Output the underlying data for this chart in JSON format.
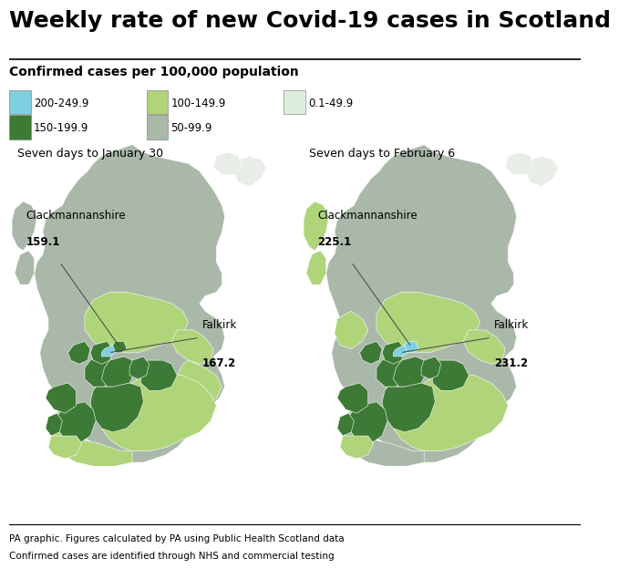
{
  "title": "Weekly rate of new Covid-19 cases in Scotland",
  "subtitle": "Confirmed cases per 100,000 population",
  "footer_line1": "PA graphic. Figures calculated by PA using Public Health Scotland data",
  "footer_line2": "Confirmed cases are identified through NHS and commercial testing",
  "legend": [
    {
      "label": "200-249.9",
      "color": "#7ecfe0"
    },
    {
      "label": "100-149.9",
      "color": "#afd47a"
    },
    {
      "label": "0.1-49.9",
      "color": "#ddeedd"
    },
    {
      "label": "150-199.9",
      "color": "#3d7a35"
    },
    {
      "label": "50-99.9",
      "color": "#aab8aa"
    }
  ],
  "map1_title": "Seven days to January 30",
  "map2_title": "Seven days to February 6",
  "map1_clack_label": "Clackmannanshire",
  "map1_clack_value": "159.1",
  "map1_falk_label": "Falkirk",
  "map1_falk_value": "167.2",
  "map2_clack_label": "Clackmannanshire",
  "map2_clack_value": "225.1",
  "map2_falk_label": "Falkirk",
  "map2_falk_value": "231.2",
  "bg_color": "#cce8f4",
  "panel_bg": "#ffffff",
  "title_fs": 18,
  "sub_fs": 10,
  "legend_fs": 8.5,
  "maptitle_fs": 9,
  "ann_fs": 8.5,
  "footer_fs": 7.5
}
